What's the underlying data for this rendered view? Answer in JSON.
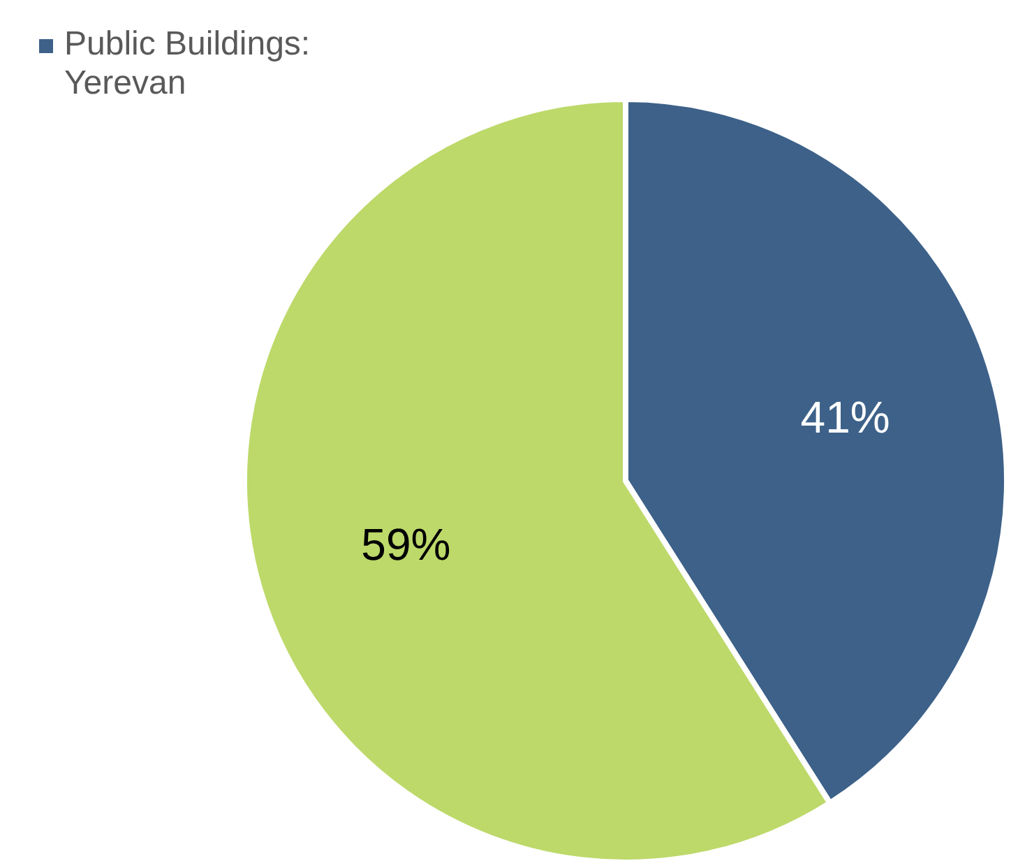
{
  "chart_data": {
    "type": "pie",
    "categories": [
      "Public Buildings: Yerevan",
      null
    ],
    "values": [
      41,
      59
    ],
    "colors": [
      "#3d6189",
      "#bdd96a"
    ],
    "value_labels": [
      "41%",
      "59%"
    ],
    "legend": "top left"
  }
}
